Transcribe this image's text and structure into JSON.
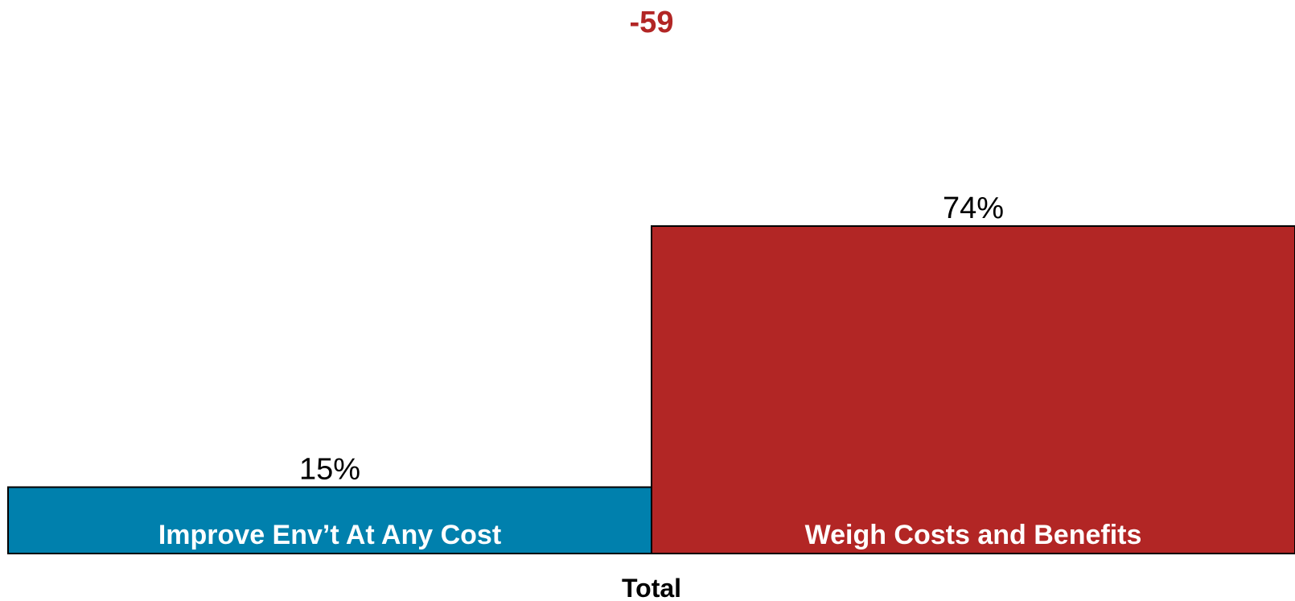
{
  "chart_data": {
    "type": "bar",
    "categories": [
      "Improve Env’t At Any Cost",
      "Weigh Costs and Benefits"
    ],
    "values": [
      15,
      74
    ],
    "value_labels": [
      "15%",
      "74%"
    ],
    "net_label": "-59",
    "xlabel": "Total",
    "ylabel": "",
    "ylim": [
      0,
      100
    ],
    "grid": false,
    "colors": [
      "#0080ad",
      "#b22625"
    ],
    "net_label_color": "#b22625"
  }
}
